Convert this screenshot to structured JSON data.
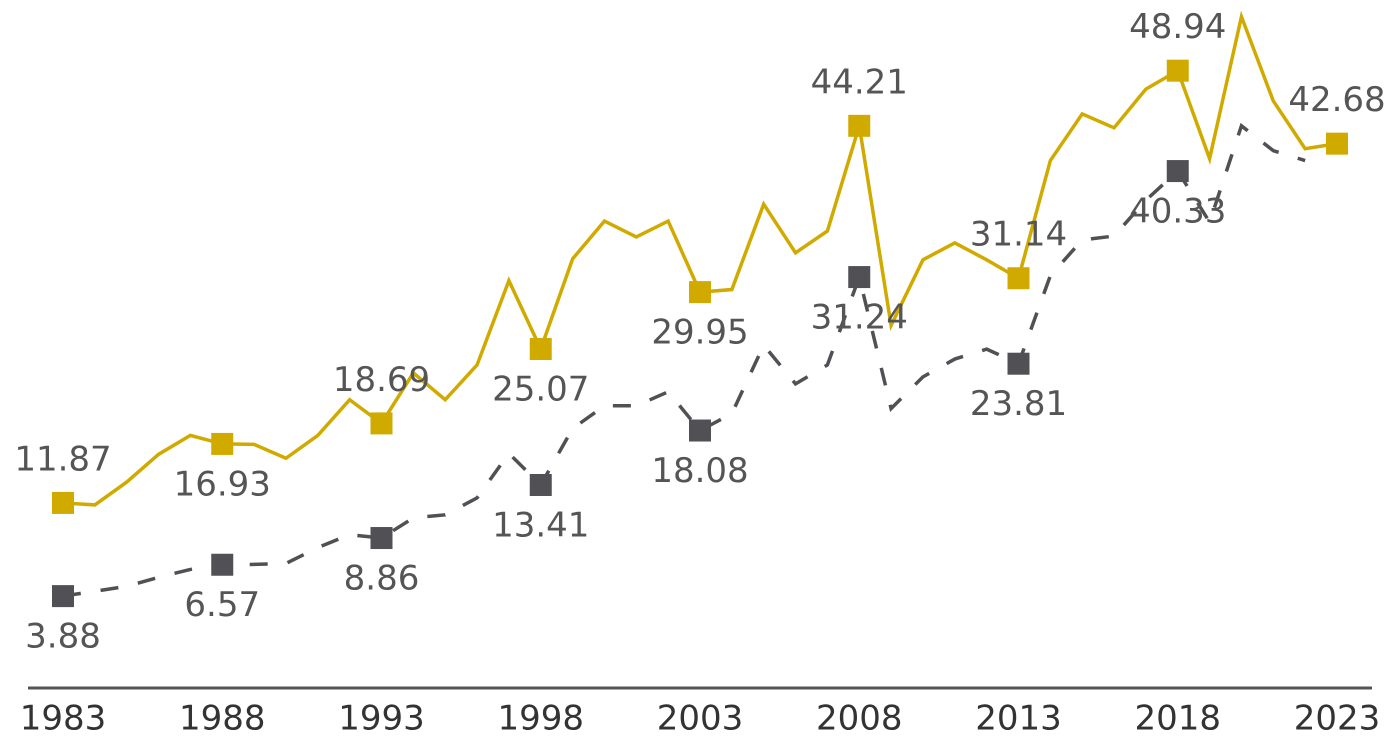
{
  "chart_data": {
    "type": "line",
    "x": [
      1983,
      1984,
      1985,
      1986,
      1987,
      1988,
      1989,
      1990,
      1991,
      1992,
      1993,
      1994,
      1995,
      1996,
      1997,
      1998,
      1999,
      2000,
      2001,
      2002,
      2003,
      2004,
      2005,
      2006,
      2007,
      2008,
      2009,
      2010,
      2011,
      2012,
      2013,
      2014,
      2015,
      2016,
      2017,
      2018,
      2019,
      2020,
      2021,
      2022,
      2023
    ],
    "series": [
      {
        "color": "#d1aa00",
        "dashed": false,
        "values": [
          11.87,
          11.7,
          13.66,
          16.04,
          17.66,
          16.93,
          16.89,
          15.7,
          17.66,
          20.72,
          18.69,
          23.02,
          20.72,
          23.7,
          30.93,
          25.07,
          32.8,
          36.04,
          34.68,
          36.04,
          29.95,
          30.17,
          37.49,
          33.32,
          35.19,
          44.21,
          27.1,
          32.72,
          34.17,
          32.72,
          31.14,
          41.23,
          45.23,
          44.04,
          47.36,
          48.94,
          41.4,
          53.57,
          46.34,
          42.25,
          42.68
        ]
      },
      {
        "color": "#505055",
        "dashed": true,
        "values": [
          3.88,
          4.3,
          4.72,
          5.49,
          6.17,
          6.57,
          6.6,
          6.68,
          8.04,
          9.15,
          8.86,
          10.59,
          10.85,
          12.3,
          16.12,
          13.41,
          18.25,
          20.2,
          20.2,
          21.4,
          18.08,
          19.53,
          25.4,
          22.08,
          23.7,
          31.24,
          19.96,
          22.68,
          24.21,
          25.06,
          23.81,
          31.36,
          34.42,
          34.76,
          37.83,
          40.33,
          35.95,
          44.21,
          42.08,
          41.23,
          null
        ]
      }
    ],
    "xlim": [
      1983,
      2023
    ],
    "xticks": [
      1983,
      1988,
      1993,
      1998,
      2003,
      2008,
      2013,
      2018,
      2023
    ],
    "ylim": [
      -4,
      55
    ]
  }
}
